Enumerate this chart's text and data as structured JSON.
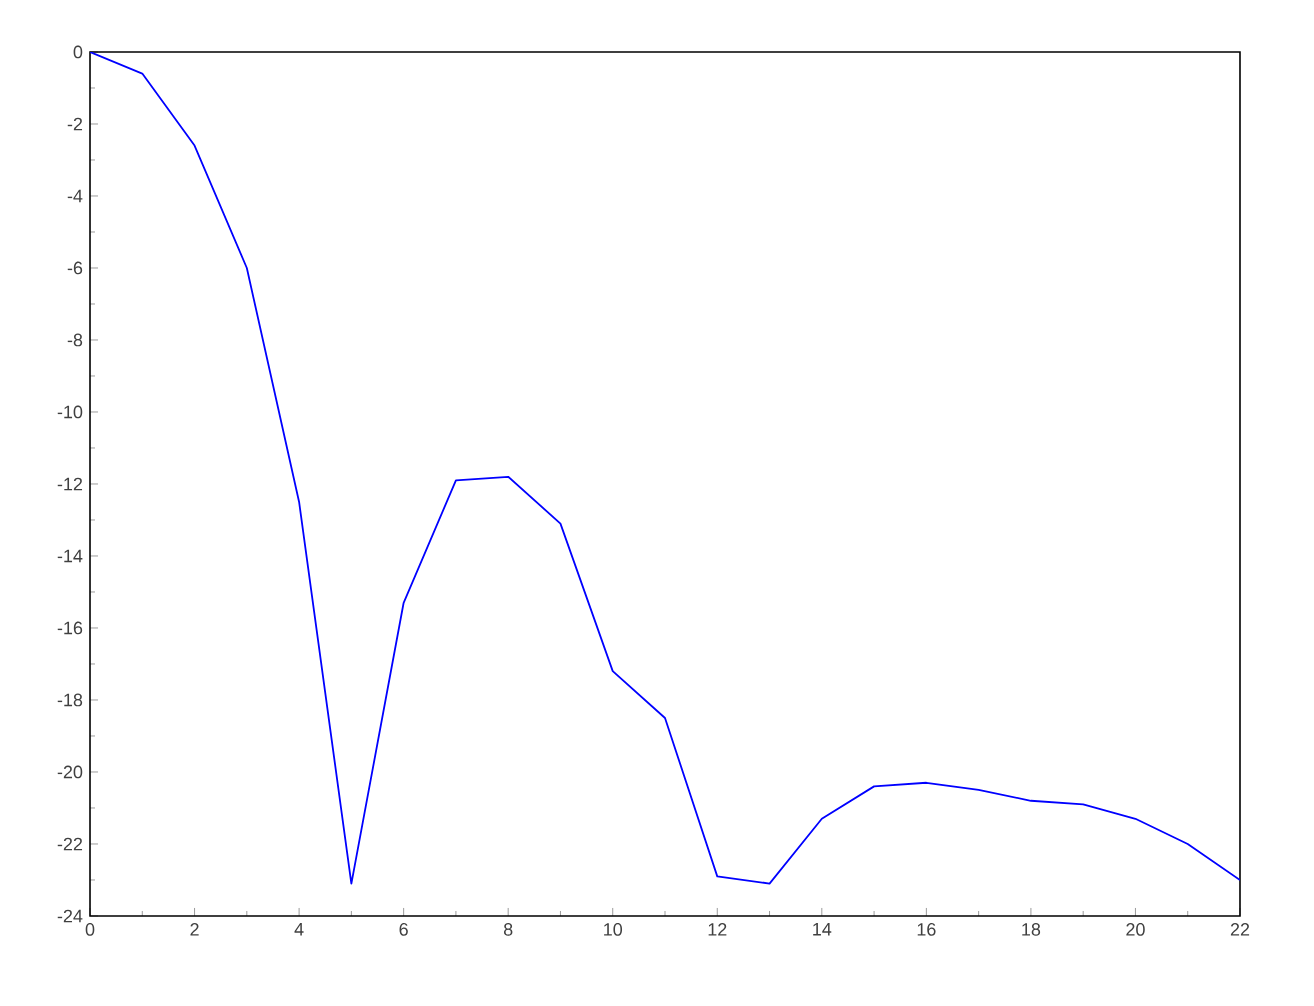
{
  "chart_data": {
    "type": "line",
    "x": [
      0,
      1,
      2,
      3,
      4,
      5,
      6,
      7,
      8,
      9,
      10,
      11,
      12,
      13,
      14,
      15,
      16,
      17,
      18,
      19,
      20,
      21,
      22
    ],
    "series": [
      {
        "color": "#0000ff",
        "values": [
          0,
          -0.6,
          -2.6,
          -6.0,
          -12.5,
          -23.1,
          -15.3,
          -11.9,
          -11.8,
          -13.1,
          -17.2,
          -18.5,
          -22.9,
          -23.1,
          -21.3,
          -20.4,
          -20.3,
          -20.5,
          -20.8,
          -20.9,
          -21.3,
          -22.0,
          -23.0
        ]
      }
    ],
    "xlim": [
      0,
      22
    ],
    "ylim": [
      -24,
      0
    ],
    "xticks": [
      0,
      2,
      4,
      6,
      8,
      10,
      12,
      14,
      16,
      18,
      20,
      22
    ],
    "yticks": [
      -24,
      -22,
      -20,
      -18,
      -16,
      -14,
      -12,
      -10,
      -8,
      -6,
      -4,
      -2,
      0
    ],
    "grid": false,
    "legend": false,
    "marker": "none",
    "line_style": "solid"
  }
}
